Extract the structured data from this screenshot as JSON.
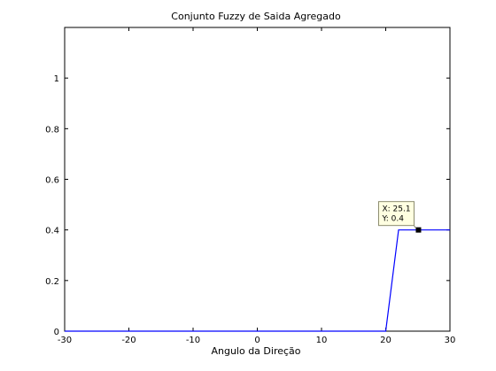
{
  "chart_data": {
    "type": "line",
    "title": "Conjunto Fuzzy de Saida Agregado",
    "xlabel": "Angulo da Direção",
    "ylabel": "",
    "xlim": [
      -30,
      30
    ],
    "ylim": [
      0,
      1.2
    ],
    "xticks": [
      -30,
      -20,
      -10,
      0,
      10,
      20,
      30
    ],
    "xtick_labels": [
      "-30",
      "-20",
      "-10",
      "0",
      "10",
      "20",
      "30"
    ],
    "yticks": [
      0,
      0.2,
      0.4,
      0.6,
      0.8,
      1
    ],
    "ytick_labels": [
      "0",
      "0.2",
      "0.4",
      "0.6",
      "0.8",
      "1"
    ],
    "grid": false,
    "series": [
      {
        "color": "#0000ff",
        "x": [
          -30,
          20,
          22,
          30
        ],
        "y": [
          0,
          0,
          0.4,
          0.4
        ]
      }
    ],
    "annotation": {
      "x": 25.1,
      "y": 0.4,
      "line1": "X: 25.1",
      "line2": "Y: 0.4"
    }
  },
  "colors": {
    "line": "#0000ff",
    "datatip_bg": "#ffffe1",
    "datatip_border": "#8c8c6e"
  }
}
